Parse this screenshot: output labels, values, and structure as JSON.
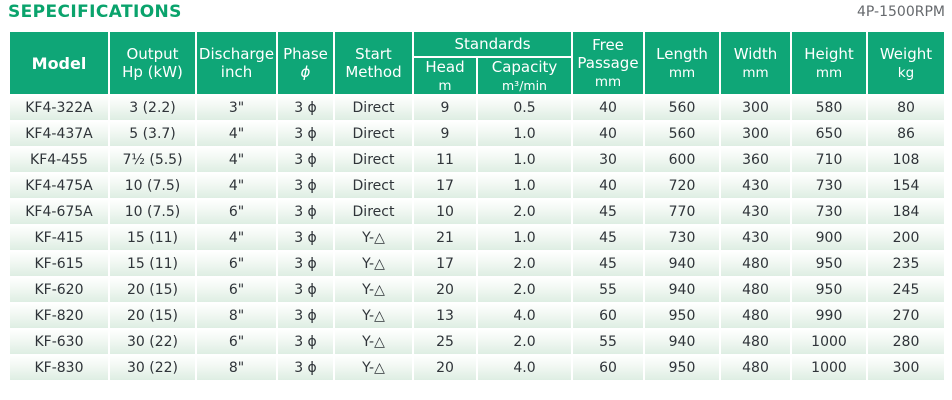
{
  "page": {
    "title": "SEPECIFICATIONS",
    "note": "4P-1500RPM"
  },
  "colors": {
    "header_green": "#0fa677",
    "title_green": "#0aa36c",
    "note_gray": "#66696d",
    "row_tint": "#deeee3",
    "cell_text": "#2f3439"
  },
  "table": {
    "col_keys": [
      "model",
      "output",
      "discharge",
      "phase",
      "start",
      "head",
      "capacity",
      "free_passage",
      "length",
      "width",
      "height",
      "weight"
    ],
    "head": {
      "model": "Model",
      "output_l1": "Output",
      "output_l2": "Hp (kW)",
      "discharge_l1": "Discharge",
      "discharge_l2": "inch",
      "phase_l1": "Phase",
      "phase_l2": "ϕ",
      "start_l1": "Start",
      "start_l2": "Method",
      "standards": "Standards",
      "head_l1": "Head",
      "head_l2": "m",
      "capacity_l1": "Capacity",
      "capacity_l2": "m³/min",
      "free_l1": "Free",
      "free_l2": "Passage",
      "free_l3": "mm",
      "length_l1": "Length",
      "length_l2": "mm",
      "width_l1": "Width",
      "width_l2": "mm",
      "height_l1": "Height",
      "height_l2": "mm",
      "weight_l1": "Weight",
      "weight_l2": "kg"
    }
  },
  "chart_data": {
    "type": "table",
    "title": "SEPECIFICATIONS",
    "note": "4P-1500RPM",
    "columns": [
      "Model",
      "Output Hp (kW)",
      "Discharge inch",
      "Phase ϕ",
      "Start Method",
      "Standards: Head m",
      "Standards: Capacity m³/min",
      "Free Passage mm",
      "Length mm",
      "Width mm",
      "Height mm",
      "Weight kg"
    ],
    "rows": [
      [
        "KF4-322A",
        "3 (2.2)",
        "3\"",
        "3 ϕ",
        "Direct",
        "9",
        "0.5",
        "40",
        "560",
        "300",
        "580",
        "80"
      ],
      [
        "KF4-437A",
        "5 (3.7)",
        "4\"",
        "3 ϕ",
        "Direct",
        "9",
        "1.0",
        "40",
        "560",
        "300",
        "650",
        "86"
      ],
      [
        "KF4-455",
        "7½ (5.5)",
        "4\"",
        "3 ϕ",
        "Direct",
        "11",
        "1.0",
        "30",
        "600",
        "360",
        "710",
        "108"
      ],
      [
        "KF4-475A",
        "10 (7.5)",
        "4\"",
        "3 ϕ",
        "Direct",
        "17",
        "1.0",
        "40",
        "720",
        "430",
        "730",
        "154"
      ],
      [
        "KF4-675A",
        "10 (7.5)",
        "6\"",
        "3 ϕ",
        "Direct",
        "10",
        "2.0",
        "45",
        "770",
        "430",
        "730",
        "184"
      ],
      [
        "KF-415",
        "15 (11)",
        "4\"",
        "3 ϕ",
        "Y-△",
        "21",
        "1.0",
        "45",
        "730",
        "430",
        "900",
        "200"
      ],
      [
        "KF-615",
        "15 (11)",
        "6\"",
        "3 ϕ",
        "Y-△",
        "17",
        "2.0",
        "45",
        "940",
        "480",
        "950",
        "235"
      ],
      [
        "KF-620",
        "20 (15)",
        "6\"",
        "3 ϕ",
        "Y-△",
        "20",
        "2.0",
        "55",
        "940",
        "480",
        "950",
        "245"
      ],
      [
        "KF-820",
        "20 (15)",
        "8\"",
        "3 ϕ",
        "Y-△",
        "13",
        "4.0",
        "60",
        "950",
        "480",
        "990",
        "270"
      ],
      [
        "KF-630",
        "30 (22)",
        "6\"",
        "3 ϕ",
        "Y-△",
        "25",
        "2.0",
        "55",
        "940",
        "480",
        "1000",
        "280"
      ],
      [
        "KF-830",
        "30 (22)",
        "8\"",
        "3 ϕ",
        "Y-△",
        "20",
        "4.0",
        "60",
        "950",
        "480",
        "1000",
        "300"
      ]
    ]
  }
}
